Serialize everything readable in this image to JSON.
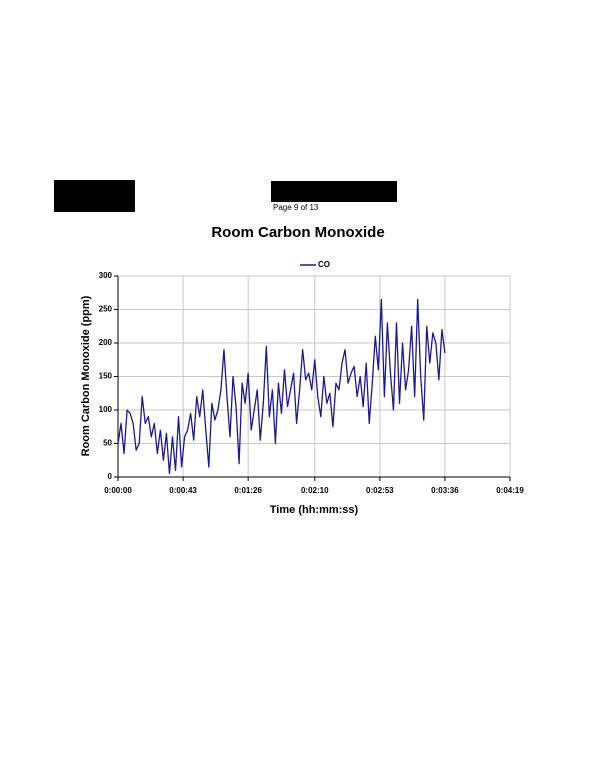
{
  "header": {
    "page_label": "Page 9 of 13"
  },
  "chart_data": {
    "type": "line",
    "title": "Room Carbon Monoxide",
    "x_label": "Time (hh:mm:ss)",
    "y_label": "Room Carbon Monoxide (ppm)",
    "grid": true,
    "legend": "top",
    "xlim": [
      0,
      259
    ],
    "xticks": [
      {
        "value": 0,
        "label": "0:00:00"
      },
      {
        "value": 43,
        "label": "0:00:43"
      },
      {
        "value": 86,
        "label": "0:01:26"
      },
      {
        "value": 130,
        "label": "0:02:10"
      },
      {
        "value": 173,
        "label": "0:02:53"
      },
      {
        "value": 216,
        "label": "0:03:36"
      },
      {
        "value": 259,
        "label": "0:04:19"
      }
    ],
    "ylim": [
      0,
      300
    ],
    "yticks": [
      0,
      50,
      100,
      150,
      200,
      250,
      300
    ],
    "x": [
      0,
      2,
      4,
      6,
      8,
      10,
      12,
      14,
      16,
      18,
      20,
      22,
      24,
      26,
      28,
      30,
      32,
      34,
      36,
      38,
      40,
      42,
      44,
      46,
      48,
      50,
      52,
      54,
      56,
      58,
      60,
      62,
      64,
      66,
      68,
      70,
      72,
      74,
      76,
      78,
      80,
      82,
      84,
      86,
      88,
      90,
      92,
      94,
      96,
      98,
      100,
      102,
      104,
      106,
      108,
      110,
      112,
      114,
      116,
      118,
      120,
      122,
      124,
      126,
      128,
      130,
      132,
      134,
      136,
      138,
      140,
      142,
      144,
      146,
      148,
      150,
      152,
      154,
      156,
      158,
      160,
      162,
      164,
      166,
      168,
      170,
      172,
      174,
      176,
      178,
      180,
      182,
      184,
      186,
      188,
      190,
      192,
      194,
      196,
      198,
      200,
      202,
      204,
      206,
      208,
      210,
      212,
      214,
      216
    ],
    "series": [
      {
        "name": "CO",
        "color": "#1a1a8c",
        "values": [
          50,
          80,
          35,
          100,
          95,
          80,
          40,
          50,
          120,
          80,
          90,
          60,
          80,
          35,
          70,
          25,
          65,
          5,
          60,
          10,
          90,
          15,
          60,
          70,
          95,
          55,
          120,
          90,
          130,
          70,
          15,
          110,
          85,
          100,
          130,
          190,
          120,
          60,
          150,
          105,
          20,
          140,
          110,
          155,
          70,
          100,
          130,
          55,
          110,
          195,
          90,
          130,
          50,
          140,
          95,
          160,
          105,
          130,
          155,
          80,
          130,
          190,
          145,
          155,
          130,
          175,
          120,
          90,
          150,
          110,
          125,
          75,
          140,
          130,
          170,
          190,
          140,
          155,
          165,
          120,
          150,
          105,
          170,
          80,
          140,
          210,
          160,
          265,
          120,
          230,
          155,
          100,
          230,
          110,
          200,
          130,
          160,
          225,
          120,
          265,
          150,
          85,
          225,
          170,
          215,
          200,
          145,
          220,
          185
        ]
      }
    ]
  }
}
